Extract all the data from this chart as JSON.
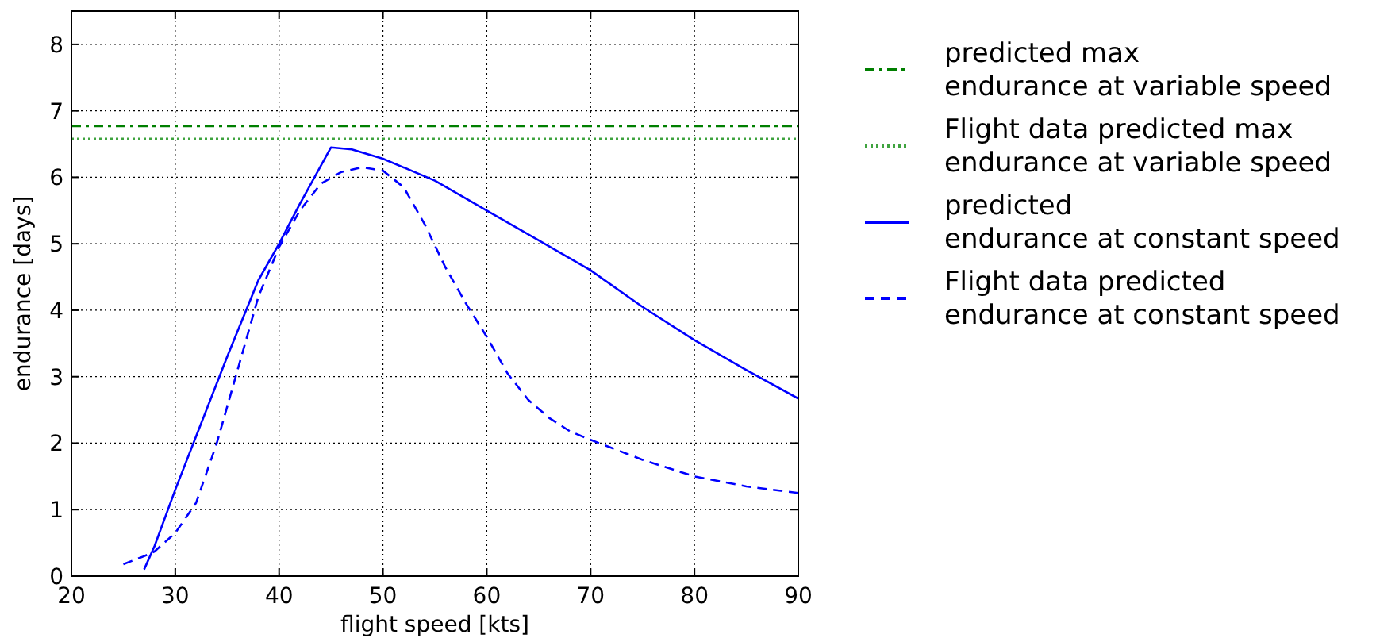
{
  "chart_data": {
    "type": "line",
    "xlabel": "flight speed [kts]",
    "ylabel": "endurance [days]",
    "xlim": [
      20,
      90
    ],
    "xticks": [
      20,
      30,
      40,
      50,
      60,
      70,
      80,
      90
    ],
    "ylim": [
      0,
      8.5
    ],
    "yticks": [
      0,
      1,
      2,
      3,
      4,
      5,
      6,
      7,
      8
    ],
    "grid": true,
    "legend": "right",
    "series": [
      {
        "name": "predicted max\nendurance at variable speed",
        "color": "#007f00",
        "line_style": "dashdot",
        "x": [
          20,
          90
        ],
        "values": [
          6.77,
          6.77
        ]
      },
      {
        "name": "Flight data predicted max\nendurance at variable speed",
        "color": "#3fa33f",
        "line_style": "dotted",
        "x": [
          20,
          90
        ],
        "values": [
          6.58,
          6.58
        ]
      },
      {
        "name": "predicted\nendurance at constant speed",
        "color": "#0000ff",
        "line_style": "solid",
        "x": [
          27,
          28,
          30,
          32,
          35,
          38,
          40,
          42,
          45,
          47,
          50,
          55,
          60,
          65,
          70,
          75,
          80,
          85,
          90
        ],
        "values": [
          0.1,
          0.45,
          1.3,
          2.1,
          3.3,
          4.45,
          5.0,
          5.6,
          6.45,
          6.42,
          6.28,
          5.95,
          5.5,
          5.05,
          4.6,
          4.05,
          3.55,
          3.1,
          2.67
        ]
      },
      {
        "name": "Flight data predicted\nendurance at constant speed",
        "color": "#0000ff",
        "line_style": "dashed",
        "x": [
          25,
          27,
          28,
          30,
          32,
          34,
          36,
          38,
          40,
          42,
          44,
          46,
          48,
          50,
          52,
          54,
          56,
          58,
          60,
          62,
          64,
          66,
          68,
          70,
          75,
          80,
          85,
          90
        ],
        "values": [
          0.18,
          0.3,
          0.37,
          0.65,
          1.1,
          2.0,
          3.1,
          4.2,
          4.95,
          5.5,
          5.9,
          6.08,
          6.15,
          6.1,
          5.85,
          5.3,
          4.65,
          4.1,
          3.6,
          3.05,
          2.65,
          2.38,
          2.18,
          2.05,
          1.75,
          1.5,
          1.35,
          1.25
        ]
      }
    ]
  }
}
